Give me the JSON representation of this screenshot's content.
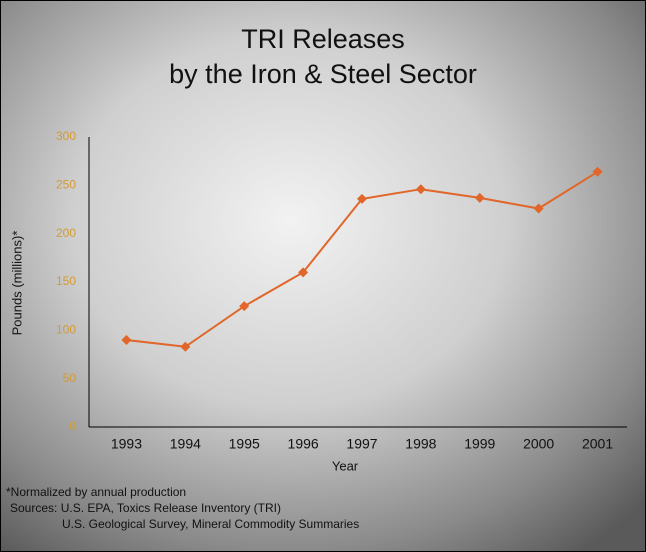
{
  "chart_data": {
    "type": "line",
    "title": [
      "TRI Releases",
      "by the Iron & Steel Sector"
    ],
    "x_label": "Year",
    "y_label": "Pounds (millions)*",
    "categories": [
      "1993",
      "1994",
      "1995",
      "1996",
      "1997",
      "1998",
      "1999",
      "2000",
      "2001"
    ],
    "values": [
      90,
      83,
      125,
      160,
      236,
      246,
      237,
      226,
      264
    ],
    "color": "#e0662a",
    "tick_color": "#d49a34",
    "ylim": [
      0,
      300
    ],
    "yticks": [
      0,
      50,
      100,
      150,
      200,
      250,
      300
    ],
    "grid": false,
    "notes": [
      "*Normalized by annual production",
      "Sources: U.S. EPA, Toxics Release Inventory (TRI)",
      "U.S. Geological Survey, Mineral Commodity Summaries"
    ]
  }
}
